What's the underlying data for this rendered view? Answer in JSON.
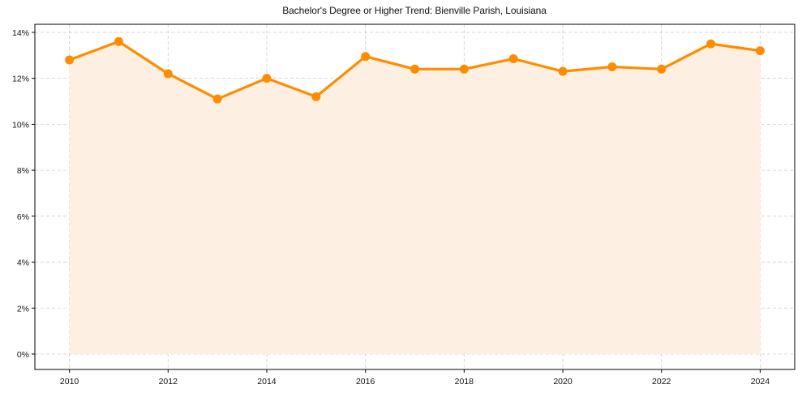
{
  "chart_data": {
    "type": "line",
    "title": "Bachelor's Degree or Higher Trend: Bienville Parish, Louisiana",
    "xlabel": "",
    "ylabel": "",
    "x": [
      2010,
      2011,
      2012,
      2013,
      2014,
      2015,
      2016,
      2017,
      2018,
      2019,
      2020,
      2021,
      2022,
      2023,
      2024
    ],
    "series": [
      {
        "name": "Bachelor's Degree or Higher",
        "values": [
          12.8,
          13.6,
          12.2,
          11.1,
          12.0,
          11.2,
          12.95,
          12.4,
          12.4,
          12.85,
          12.3,
          12.5,
          12.4,
          13.5,
          13.2
        ],
        "color": "#FF8C00",
        "fill": true,
        "markers": true
      }
    ],
    "xticks": [
      "2010",
      "2012",
      "2014",
      "2016",
      "2018",
      "2020",
      "2022",
      "2024"
    ],
    "yticks": [
      "0%",
      "2%",
      "4%",
      "6%",
      "8%",
      "10%",
      "12%",
      "14%"
    ],
    "ylim": [
      -0.67,
      14.35
    ],
    "xlim": [
      2009.3,
      2024.7
    ],
    "grid": true,
    "legend": "none",
    "colors": {
      "line": "#FF8C00",
      "fill": "#FDF0E3",
      "grid": "#cccccc",
      "axis": "#000000"
    }
  }
}
